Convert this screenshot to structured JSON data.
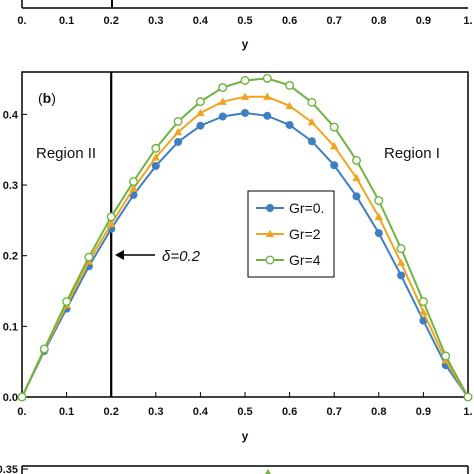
{
  "chart_data": [
    {
      "type": "line",
      "note_visible": "partial top panel (cropped)",
      "x_ticks": [
        "0.",
        "0.1",
        "0.2",
        "0.3",
        "0.4",
        "0.5",
        "0.6",
        "0.7",
        "0.8",
        "0.9",
        "1."
      ],
      "xlabel": "y"
    },
    {
      "type": "line",
      "panel_label": "b",
      "xlabel": "y",
      "ylabel": "",
      "xlim": [
        0,
        1
      ],
      "ylim": [
        0,
        0.46
      ],
      "x_ticks": [
        "0.",
        "0.1",
        "0.2",
        "0.3",
        "0.4",
        "0.5",
        "0.6",
        "0.7",
        "0.8",
        "0.9",
        "1."
      ],
      "y_ticks": [
        "0.0",
        "0.1",
        "0.2",
        "0.3",
        "0.4"
      ],
      "y_tick_values": [
        0,
        0.1,
        0.2,
        0.3,
        0.4
      ],
      "regions": [
        "Region II",
        "Region I"
      ],
      "delta_label": "δ=0.2",
      "delta_value": 0.2,
      "x": [
        0,
        0.05,
        0.1,
        0.15,
        0.2,
        0.25,
        0.3,
        0.35,
        0.4,
        0.45,
        0.5,
        0.55,
        0.6,
        0.65,
        0.7,
        0.75,
        0.8,
        0.85,
        0.9,
        0.95,
        1.0
      ],
      "series": [
        {
          "name": "Gr=0.",
          "color": "#3f7fc1",
          "marker": "circle-filled",
          "values": [
            0,
            0.065,
            0.125,
            0.185,
            0.238,
            0.286,
            0.327,
            0.361,
            0.384,
            0.397,
            0.402,
            0.398,
            0.385,
            0.362,
            0.328,
            0.284,
            0.232,
            0.172,
            0.108,
            0.045,
            0
          ]
        },
        {
          "name": "Gr=2",
          "color": "#f0a423",
          "marker": "triangle-filled",
          "values": [
            0,
            0.067,
            0.13,
            0.192,
            0.245,
            0.295,
            0.339,
            0.375,
            0.402,
            0.418,
            0.425,
            0.425,
            0.412,
            0.389,
            0.355,
            0.31,
            0.255,
            0.19,
            0.12,
            0.052,
            0
          ]
        },
        {
          "name": "Gr=4",
          "color": "#6fb43f",
          "marker": "circle-open",
          "values": [
            0,
            0.068,
            0.135,
            0.198,
            0.255,
            0.305,
            0.352,
            0.39,
            0.418,
            0.438,
            0.448,
            0.451,
            0.441,
            0.417,
            0.382,
            0.335,
            0.278,
            0.21,
            0.135,
            0.058,
            0
          ]
        }
      ],
      "legend_placement": "center-right"
    },
    {
      "type": "line",
      "note_visible": "partial bottom panel (cropped)",
      "y_ticks": [
        "0.35"
      ]
    }
  ]
}
